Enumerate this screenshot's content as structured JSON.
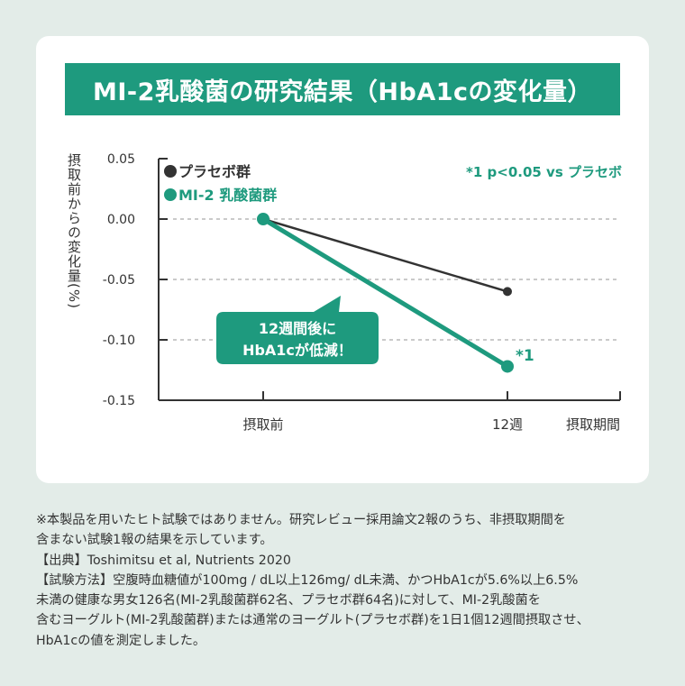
{
  "title": "MI-2乳酸菌の研究結果（HbA1cの変化量）",
  "colors": {
    "accent": "#1e9a7e",
    "placebo": "#333333",
    "background": "#e3ece8"
  },
  "chart_data": {
    "type": "line",
    "title": "MI-2乳酸菌の研究結果（HbA1cの変化量）",
    "ylabel": "摂取前からの変化量(%)",
    "xlabel": "摂取期間",
    "categories": [
      "摂取前",
      "12週"
    ],
    "ylim": [
      -0.15,
      0.05
    ],
    "yticks": [
      "0.05",
      "0.00",
      "-0.05",
      "-0.10",
      "-0.15"
    ],
    "grid": "horizontal dashed",
    "legend_placement": "top-left",
    "series": [
      {
        "name": "プラセボ群",
        "values": [
          0.0,
          -0.06
        ],
        "color": "#333333"
      },
      {
        "name": "MI-2 乳酸菌群",
        "values": [
          0.0,
          -0.122
        ],
        "color": "#1e9a7e"
      }
    ],
    "significance_note": "*1 p<0.05 vs プラセボ",
    "point_marker": "*1",
    "callout": [
      "12週間後に",
      "HbA1cが低減！"
    ]
  },
  "notes": [
    "※本製品を用いたヒト試験ではありません。研究レビュー採用論文2報のうち、非摂取期間を",
    "含まない試験1報の結果を示しています。",
    "【出典】Toshimitsu et al, Nutrients 2020",
    "【試験方法】空腹時血糖値が100mg / dL以上126mg/ dL未満、かつHbA1cが5.6%以上6.5%",
    "未満の健康な男女126名(MI-2乳酸菌群62名、プラセボ群64名)に対して、MI-2乳酸菌を",
    "含むヨーグルト(MI-2乳酸菌群)または通常のヨーグルト(プラセボ群)を1日1個12週間摂取させ、",
    "HbA1cの値を測定しました。"
  ]
}
